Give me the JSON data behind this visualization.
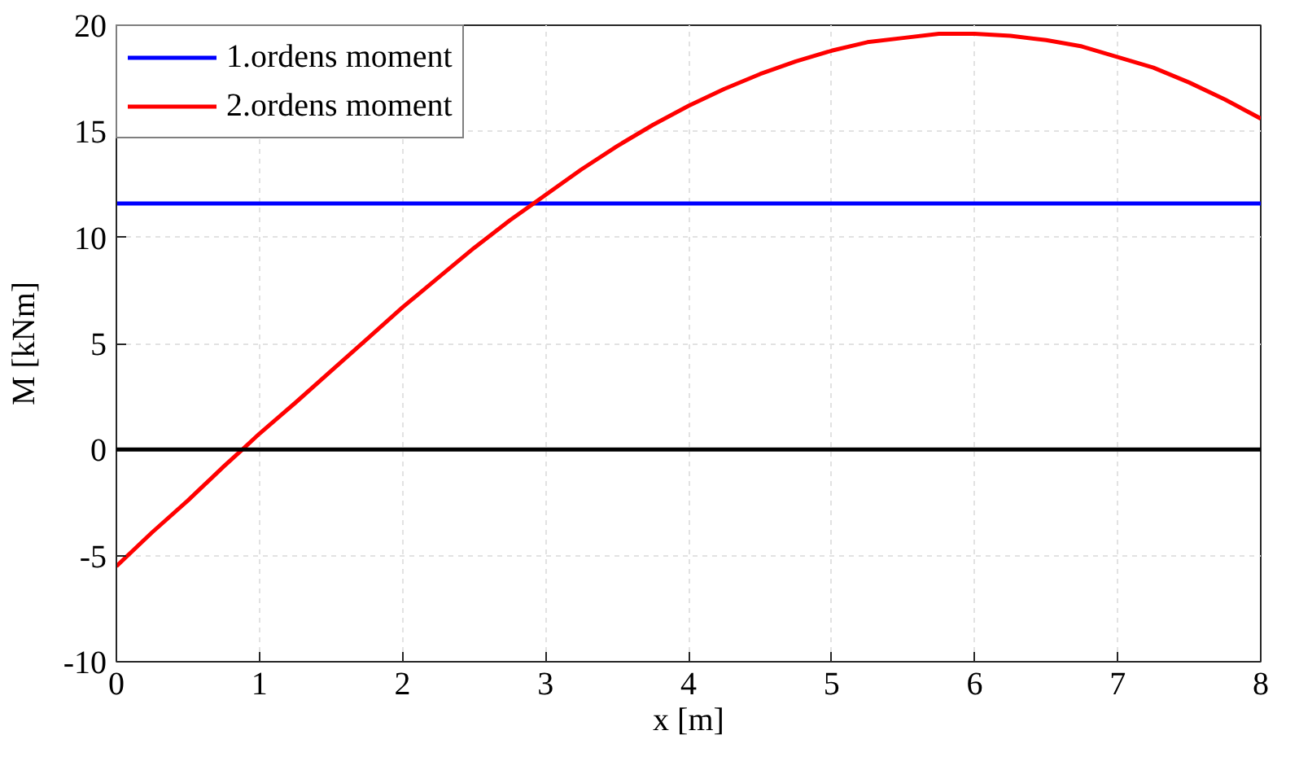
{
  "chart_data": {
    "type": "line",
    "xlabel": "x [m]",
    "ylabel": "M [kNm]",
    "xlim": [
      0,
      8
    ],
    "ylim": [
      -10,
      20
    ],
    "xticks": [
      0,
      1,
      2,
      3,
      4,
      5,
      6,
      7,
      8
    ],
    "yticks": [
      -10,
      -5,
      0,
      5,
      10,
      15,
      20
    ],
    "grid": true,
    "legend": "top left",
    "line_style": "solid",
    "ref_lines": [
      {
        "axis": "y",
        "value": 0,
        "color": "#000000"
      }
    ],
    "series": [
      {
        "name": "1.ordens moment",
        "color": "#0000ff",
        "x": [
          0,
          8
        ],
        "values": [
          11.6,
          11.6
        ]
      },
      {
        "name": "2.ordens moment",
        "color": "#ff0000",
        "x": [
          0,
          0.25,
          0.5,
          0.75,
          0.88,
          1.0,
          1.25,
          1.5,
          1.75,
          2.0,
          2.25,
          2.5,
          2.75,
          3.0,
          3.25,
          3.5,
          3.75,
          4.0,
          4.25,
          4.5,
          4.75,
          5.0,
          5.25,
          5.5,
          5.75,
          6.0,
          6.25,
          6.5,
          6.75,
          7.0,
          7.25,
          7.5,
          7.75,
          8.0
        ],
        "values": [
          -5.5,
          -3.9,
          -2.4,
          -0.8,
          0,
          0.75,
          2.2,
          3.7,
          5.2,
          6.7,
          8.1,
          9.5,
          10.8,
          12.0,
          13.2,
          14.3,
          15.3,
          16.2,
          17.0,
          17.7,
          18.3,
          18.8,
          19.2,
          19.4,
          19.6,
          19.6,
          19.5,
          19.3,
          19.0,
          18.5,
          18.0,
          17.3,
          16.5,
          15.6
        ]
      }
    ]
  }
}
